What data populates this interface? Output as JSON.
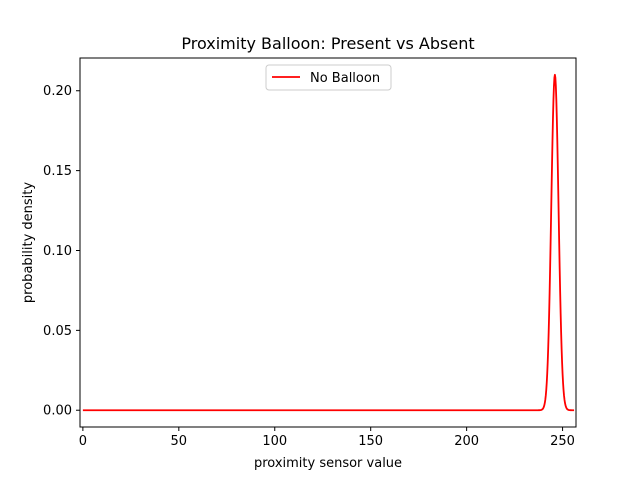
{
  "chart_data": {
    "type": "line",
    "title": "Proximity Balloon: Present vs Absent",
    "xlabel": "proximity sensor value",
    "ylabel": "probability density",
    "xlim": [
      -1.5,
      257
    ],
    "ylim": [
      -0.0105,
      0.2205
    ],
    "xticks": [
      0,
      50,
      100,
      150,
      200,
      250
    ],
    "yticks": [
      0.0,
      0.05,
      0.1,
      0.15,
      0.2
    ],
    "ytick_labels": [
      "0.00",
      "0.05",
      "0.10",
      "0.15",
      "0.20"
    ],
    "grid": false,
    "legend_position": "upper center",
    "series": [
      {
        "name": "No Balloon",
        "color": "#ff0000",
        "distribution": "normal",
        "mean": 246.0,
        "std": 1.9,
        "peak": 0.21,
        "x_range": [
          0,
          256
        ]
      }
    ]
  }
}
